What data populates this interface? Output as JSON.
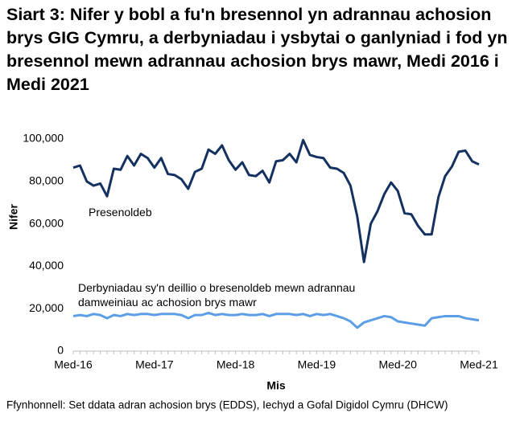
{
  "chart_data": {
    "type": "line",
    "title": "Siart 3: Nifer y bobl a fu'n bresennol yn adrannau achosion brys GIG Cymru, a derbyniadau i ysbytai o ganlyniad i fod yn bresennol mewn adrannau achosion brys mawr, Medi 2016 i Medi 2021",
    "y_label": "Nifer",
    "x_label": "Mis",
    "source": "Ffynhonnell: Set ddata adran achosion brys (EDDS), Iechyd a Gofal Digidol Cymru (DHCW)",
    "categories": [
      "Med-16",
      null,
      null,
      null,
      null,
      null,
      null,
      null,
      null,
      null,
      null,
      null,
      "Med-17",
      null,
      null,
      null,
      null,
      null,
      null,
      null,
      null,
      null,
      null,
      null,
      "Med-18",
      null,
      null,
      null,
      null,
      null,
      null,
      null,
      null,
      null,
      null,
      null,
      "Med-19",
      null,
      null,
      null,
      null,
      null,
      null,
      null,
      null,
      null,
      null,
      null,
      "Med-20",
      null,
      null,
      null,
      null,
      null,
      null,
      null,
      null,
      null,
      null,
      null,
      "Med-21"
    ],
    "ylim": [
      0,
      100000
    ],
    "yticks": [
      0,
      {
        "value": 20000,
        "label": "20,000"
      },
      {
        "value": 40000,
        "label": "40,000"
      },
      {
        "value": 60000,
        "label": "60,000"
      },
      {
        "value": 80000,
        "label": "80,000"
      },
      {
        "value": 100000,
        "label": "100,000"
      }
    ],
    "grid": false,
    "series": [
      {
        "name": "Presenoldeb",
        "color": "#14315f",
        "values": [
          86500,
          87500,
          80000,
          78000,
          79000,
          73000,
          86000,
          85500,
          92000,
          87500,
          93000,
          91000,
          86500,
          91000,
          83500,
          83000,
          81000,
          76500,
          84500,
          86000,
          95000,
          93000,
          97000,
          90000,
          85500,
          89000,
          83000,
          82500,
          85000,
          79500,
          89500,
          90000,
          93000,
          89000,
          99500,
          92500,
          91500,
          91000,
          86500,
          86000,
          84000,
          78000,
          63500,
          42000,
          60000,
          66000,
          74000,
          79500,
          75500,
          65000,
          64500,
          59000,
          55000,
          55000,
          72500,
          82500,
          87000,
          94000,
          94500,
          89500,
          88000
        ]
      },
      {
        "name": "Derbyniadau sy'n deillio o bresenoldeb mewn adrannau damweiniau ac achosion brys mawr",
        "color": "#5b9ee6",
        "values": [
          16500,
          17000,
          16500,
          17500,
          17000,
          15500,
          17000,
          16500,
          17500,
          17000,
          17500,
          17500,
          17000,
          17500,
          17500,
          17500,
          17000,
          15500,
          17000,
          17000,
          18000,
          17000,
          17500,
          17000,
          17000,
          17500,
          17000,
          17000,
          17500,
          16500,
          17500,
          17500,
          17500,
          17000,
          17500,
          16500,
          17500,
          17000,
          17500,
          16500,
          15500,
          14000,
          11000,
          13500,
          14500,
          15500,
          16500,
          16000,
          14000,
          13500,
          13000,
          12500,
          12000,
          15500,
          16000,
          16500,
          16500,
          16500,
          15500,
          15000,
          14500
        ]
      }
    ]
  }
}
